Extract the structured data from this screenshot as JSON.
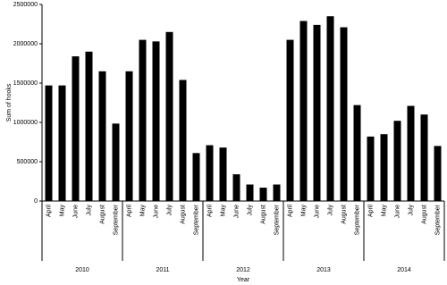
{
  "chart_data": {
    "type": "bar",
    "x_label": "Year",
    "y_label": "Sum of hooks",
    "color": "#000000",
    "categories": [
      "April",
      "May",
      "June",
      "July",
      "August",
      "September"
    ],
    "groups": [
      {
        "label": "2010",
        "values": [
          1470000,
          1470000,
          1840000,
          1900000,
          1650000,
          985000
        ]
      },
      {
        "label": "2011",
        "values": [
          1650000,
          2050000,
          2030000,
          2150000,
          1540000,
          610000
        ]
      },
      {
        "label": "2012",
        "values": [
          710000,
          680000,
          340000,
          210000,
          170000,
          210000
        ]
      },
      {
        "label": "2013",
        "values": [
          2050000,
          2290000,
          2240000,
          2350000,
          2210000,
          1220000
        ]
      },
      {
        "label": "2014",
        "values": [
          820000,
          850000,
          1020000,
          1210000,
          1100000,
          700000
        ]
      }
    ],
    "ylim": [
      0,
      2500000
    ],
    "yticks": [
      0,
      500000,
      1000000,
      1500000,
      2000000,
      2500000
    ]
  }
}
